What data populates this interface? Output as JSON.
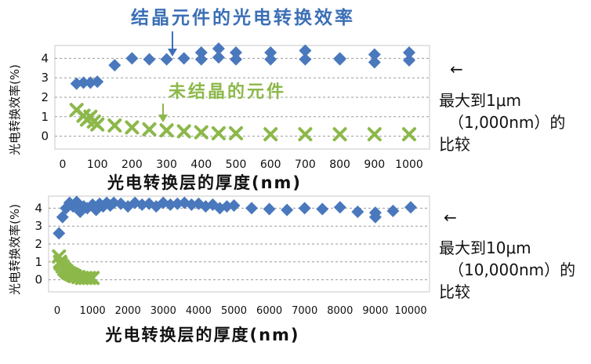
{
  "colors": {
    "crystal": "#4a78bd",
    "noncrystal": "#8cb84a",
    "axis": "#111111",
    "grid": "#9a9a9a",
    "title_blue": "#3b6fb6",
    "label_green": "#8cb84a"
  },
  "notes": {
    "top": {
      "arrow": "←",
      "line1": "最大到1μm",
      "line2": "（1,000nm）的",
      "line3": "比较"
    },
    "bottom": {
      "arrow": "←",
      "line1": "最大到10μm",
      "line2": "（10,000nm）的",
      "line3": "比较"
    }
  },
  "chart_data": [
    {
      "type": "scatter",
      "title": "结晶元件的光电转换效率",
      "xlabel": "光电转换层的厚度(nm)",
      "ylabel": "光电转换效率(%)",
      "xlim": [
        0,
        1000
      ],
      "ylim": [
        -0.5,
        4.5
      ],
      "xticks": [
        0,
        100,
        200,
        300,
        400,
        500,
        600,
        700,
        800,
        900,
        1000
      ],
      "yticks": [
        0,
        1,
        2,
        3,
        4
      ],
      "grid": "horizontal-dashed",
      "annotation": "未结晶的元件",
      "series": [
        {
          "name": "结晶元件的光电转换效率",
          "marker": "diamond",
          "color": "#4a78bd",
          "points": [
            [
              40,
              2.7
            ],
            [
              60,
              2.75
            ],
            [
              80,
              2.75
            ],
            [
              100,
              2.8
            ],
            [
              150,
              3.65
            ],
            [
              200,
              4.0
            ],
            [
              250,
              3.95
            ],
            [
              300,
              3.95
            ],
            [
              350,
              4.0
            ],
            [
              400,
              4.3
            ],
            [
              400,
              3.95
            ],
            [
              450,
              4.5
            ],
            [
              450,
              4.05
            ],
            [
              500,
              4.3
            ],
            [
              500,
              3.95
            ],
            [
              600,
              4.3
            ],
            [
              600,
              3.95
            ],
            [
              700,
              4.4
            ],
            [
              700,
              3.95
            ],
            [
              800,
              4.0
            ],
            [
              800,
              3.95
            ],
            [
              900,
              4.2
            ],
            [
              900,
              3.8
            ],
            [
              1000,
              4.3
            ],
            [
              1000,
              3.9
            ]
          ]
        },
        {
          "name": "未结晶的元件",
          "marker": "x",
          "color": "#8cb84a",
          "points": [
            [
              40,
              1.35
            ],
            [
              60,
              1.05
            ],
            [
              70,
              0.85
            ],
            [
              80,
              1.0
            ],
            [
              90,
              0.75
            ],
            [
              100,
              0.6
            ],
            [
              150,
              0.55
            ],
            [
              200,
              0.45
            ],
            [
              250,
              0.35
            ],
            [
              300,
              0.3
            ],
            [
              350,
              0.25
            ],
            [
              400,
              0.2
            ],
            [
              450,
              0.15
            ],
            [
              500,
              0.15
            ],
            [
              600,
              0.1
            ],
            [
              700,
              0.1
            ],
            [
              800,
              0.1
            ],
            [
              900,
              0.1
            ],
            [
              1000,
              0.1
            ]
          ]
        }
      ]
    },
    {
      "type": "scatter",
      "title": "",
      "xlabel": "光电转换层的厚度(nm)",
      "ylabel": "光电转换效率(%)",
      "xlim": [
        0,
        10000
      ],
      "ylim": [
        -0.5,
        4.5
      ],
      "xticks": [
        0,
        1000,
        2000,
        3000,
        4000,
        5000,
        6000,
        7000,
        8000,
        9000,
        10000
      ],
      "xtick_labels": [
        "0",
        "1000",
        "2000",
        "3000",
        "4000",
        "5000",
        "6000",
        "7000",
        "8000",
        "9000",
        "10000"
      ],
      "yticks": [
        0,
        1,
        2,
        3,
        4
      ],
      "grid": "horizontal-dashed",
      "series": [
        {
          "name": "结晶元件",
          "marker": "diamond",
          "color": "#4a78bd",
          "points": [
            [
              50,
              2.6
            ],
            [
              150,
              3.5
            ],
            [
              250,
              4.0
            ],
            [
              350,
              4.3
            ],
            [
              450,
              4.1
            ],
            [
              550,
              4.35
            ],
            [
              650,
              3.8
            ],
            [
              750,
              4.1
            ],
            [
              850,
              4.0
            ],
            [
              1000,
              4.2
            ],
            [
              1100,
              3.9
            ],
            [
              1200,
              4.25
            ],
            [
              1300,
              4.1
            ],
            [
              1400,
              4.3
            ],
            [
              1500,
              4.15
            ],
            [
              1600,
              4.3
            ],
            [
              1800,
              4.25
            ],
            [
              2000,
              4.1
            ],
            [
              2200,
              4.3
            ],
            [
              2400,
              4.2
            ],
            [
              2600,
              4.25
            ],
            [
              2800,
              4.1
            ],
            [
              3000,
              4.3
            ],
            [
              3200,
              4.2
            ],
            [
              3400,
              4.25
            ],
            [
              3600,
              4.3
            ],
            [
              3800,
              4.2
            ],
            [
              4000,
              4.25
            ],
            [
              4200,
              4.1
            ],
            [
              4400,
              4.2
            ],
            [
              4600,
              4.0
            ],
            [
              4800,
              4.1
            ],
            [
              5000,
              4.15
            ],
            [
              5500,
              4.0
            ],
            [
              6000,
              3.95
            ],
            [
              6500,
              3.9
            ],
            [
              7000,
              4.0
            ],
            [
              7500,
              3.95
            ],
            [
              8000,
              4.05
            ],
            [
              8500,
              3.8
            ],
            [
              9000,
              3.5
            ],
            [
              9000,
              3.75
            ],
            [
              9500,
              3.85
            ],
            [
              10000,
              4.05
            ]
          ]
        },
        {
          "name": "未结晶的元件",
          "marker": "x",
          "color": "#8cb84a",
          "points": [
            [
              50,
              1.3
            ],
            [
              80,
              1.0
            ],
            [
              100,
              0.9
            ],
            [
              150,
              0.75
            ],
            [
              200,
              0.6
            ],
            [
              250,
              0.5
            ],
            [
              300,
              0.4
            ],
            [
              350,
              0.35
            ],
            [
              400,
              0.3
            ],
            [
              450,
              0.25
            ],
            [
              500,
              0.2
            ],
            [
              600,
              0.15
            ],
            [
              700,
              0.1
            ],
            [
              800,
              0.1
            ],
            [
              900,
              0.1
            ],
            [
              1000,
              0.1
            ]
          ]
        }
      ]
    }
  ]
}
